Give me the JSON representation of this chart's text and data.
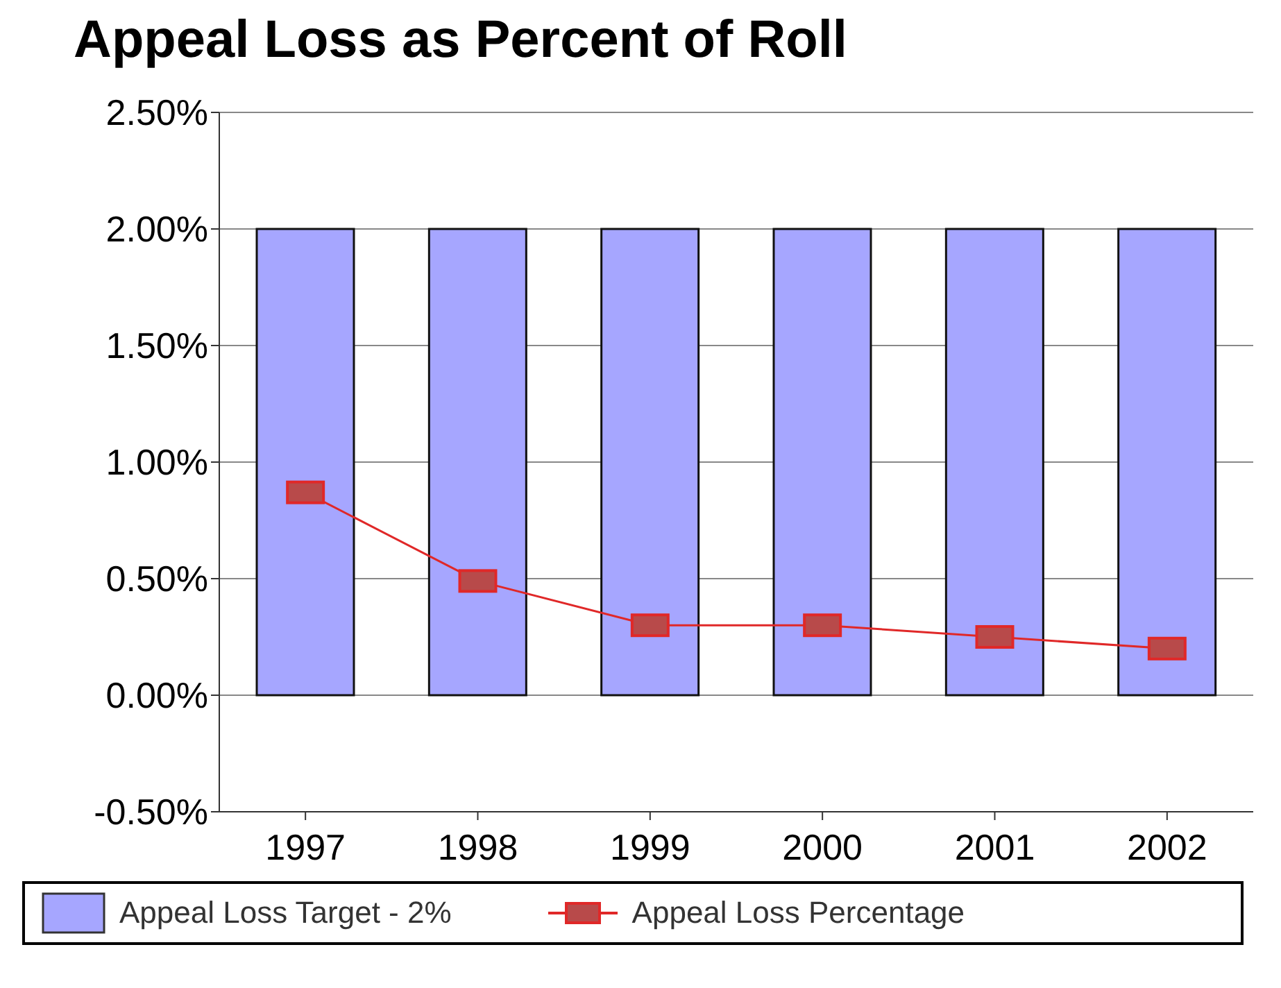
{
  "chart_data": {
    "type": "bar",
    "title": "Appeal Loss as Percent of Roll",
    "categories": [
      "1997",
      "1998",
      "1999",
      "2000",
      "2001",
      "2002"
    ],
    "series": [
      {
        "name": "Appeal Loss Target - 2%",
        "color": "#a6a6ff",
        "values": [
          2.0,
          2.0,
          2.0,
          2.0,
          2.0,
          2.0
        ]
      },
      {
        "name": "Appeal Loss Percentage",
        "type": "line",
        "color": "#e02828",
        "values": [
          0.87,
          0.49,
          0.3,
          0.3,
          0.25,
          0.2
        ]
      }
    ],
    "ylim": [
      -0.5,
      2.5
    ],
    "yticks": [
      {
        "value": -0.5,
        "label": "-0.50%"
      },
      {
        "value": 0,
        "label": "0.00%"
      },
      {
        "value": 0.5,
        "label": "0.50%"
      },
      {
        "value": 1,
        "label": "1.00%"
      },
      {
        "value": 1.5,
        "label": "1.50%"
      },
      {
        "value": 2,
        "label": "2.00%"
      },
      {
        "value": 2.5,
        "label": "2.50%"
      }
    ],
    "grid": "y",
    "legend": "bottom",
    "marker": "square"
  }
}
